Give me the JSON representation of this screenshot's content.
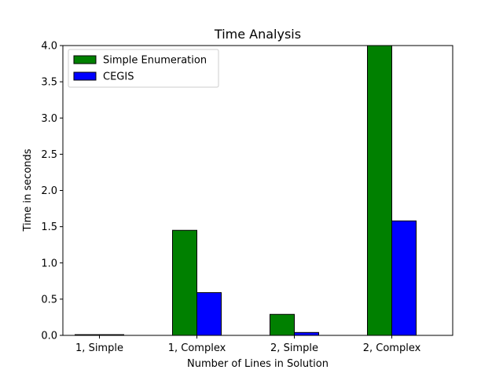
{
  "chart_data": {
    "type": "bar",
    "title": "Time Analysis",
    "xlabel": "Number of Lines in Solution",
    "ylabel": "Time in seconds",
    "categories": [
      "1, Simple",
      "1, Complex",
      "2, Simple",
      "2, Complex"
    ],
    "series": [
      {
        "name": "Simple Enumeration",
        "color": "#008000",
        "values": [
          0.01,
          1.45,
          0.29,
          4.0
        ]
      },
      {
        "name": "CEGIS",
        "color": "#0000ff",
        "values": [
          0.01,
          0.59,
          0.04,
          1.58
        ]
      }
    ],
    "ylim": [
      0,
      4.0
    ],
    "yticks": [
      "0.0",
      "0.5",
      "1.0",
      "1.5",
      "2.0",
      "2.5",
      "3.0",
      "3.5",
      "4.0"
    ],
    "grid": false,
    "legend_position": "upper-left"
  }
}
